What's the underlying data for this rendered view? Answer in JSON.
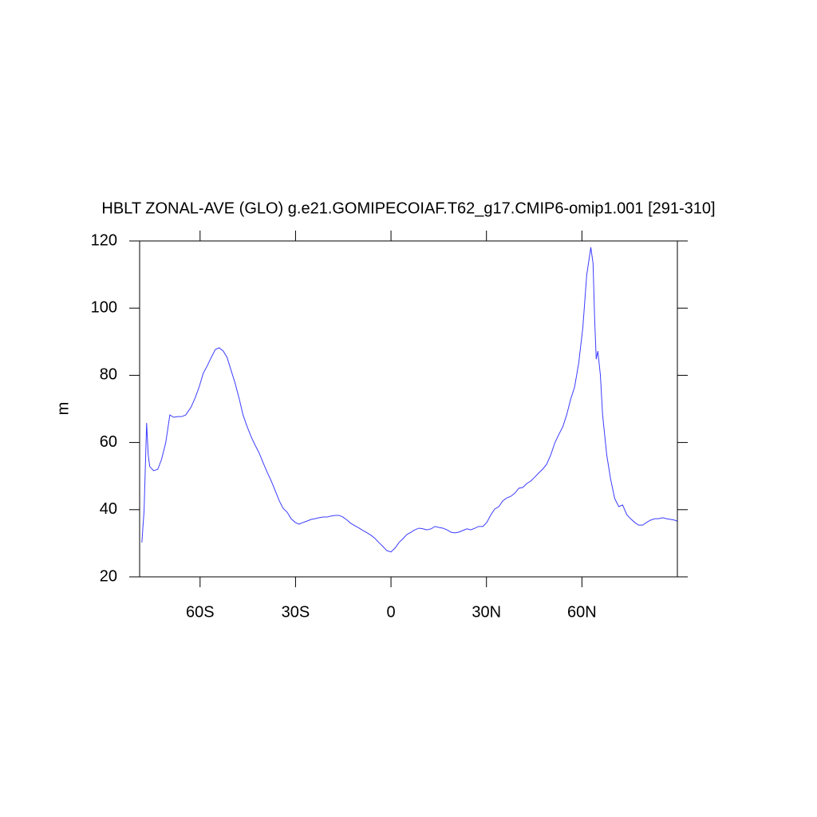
{
  "chart_data": {
    "type": "line",
    "title": "HBLT ZONAL-AVE (GLO) g.e21.GOMIPECOIAF.T62_g17.CMIP6-omip1.001 [291-310]",
    "y_label": "m",
    "x": [
      -78.3,
      -77.6,
      -76.8,
      -76.3,
      -75.8,
      -74.6,
      -73.3,
      -72.1,
      -70.8,
      -69.5,
      -68.3,
      -67,
      -65.8,
      -64.5,
      -62.8,
      -61.5,
      -60.3,
      -59,
      -57.7,
      -56.5,
      -55.2,
      -54,
      -52.7,
      -51.5,
      -50.2,
      -49,
      -47.7,
      -46.5,
      -45.2,
      -43.9,
      -42.7,
      -41.4,
      -40.2,
      -38.9,
      -37.7,
      -36.4,
      -35.1,
      -33.9,
      -32.6,
      -31.4,
      -30.1,
      -28.9,
      -27.6,
      -26.4,
      -25.1,
      -23.9,
      -22.6,
      -21.3,
      -20.1,
      -18.8,
      -17.6,
      -16.3,
      -15.1,
      -13.8,
      -12.6,
      -11.3,
      -10,
      -8.8,
      -7.5,
      -6.3,
      -5,
      -3.8,
      -2.5,
      -1.3,
      0,
      1.3,
      2.5,
      3.8,
      5,
      6.3,
      7.5,
      8.8,
      10,
      11.3,
      12.6,
      13.8,
      15.1,
      16.3,
      17.6,
      18.8,
      20.1,
      21.3,
      22.6,
      23.9,
      25.1,
      26.4,
      27.6,
      28.9,
      30.1,
      31.4,
      32.6,
      33.9,
      35.1,
      36.4,
      37.7,
      38.9,
      40.2,
      41.4,
      42.7,
      43.9,
      45.2,
      46.4,
      47.7,
      48.9,
      50.2,
      51.5,
      52.7,
      54,
      55.2,
      56.5,
      57.7,
      59,
      60.3,
      61.5,
      62.8,
      63.5,
      64,
      64.5,
      65,
      65.8,
      66.5,
      67.8,
      69,
      70.3,
      71.6,
      72.8,
      74.1,
      75.3,
      76.6,
      77.8,
      79.1,
      80.3,
      81.6,
      82.9,
      84.1,
      85.4,
      86.6,
      87.9,
      89.1,
      89.9
    ],
    "series": [
      {
        "color": "#3c3cff",
        "values": [
          30.2,
          39.7,
          65.8,
          56.3,
          52.8,
          51.6,
          52,
          55,
          59.9,
          68.2,
          67.5,
          67.7,
          67.7,
          68.2,
          70.6,
          73.4,
          76.5,
          80.6,
          82.9,
          85.3,
          87.7,
          88.2,
          87.2,
          85.3,
          81.3,
          77.7,
          73,
          68.2,
          64.7,
          61.6,
          59.2,
          56.8,
          54,
          51.1,
          48.7,
          45.7,
          42.6,
          40.4,
          39.2,
          37.3,
          36.2,
          35.7,
          36.2,
          36.6,
          37.1,
          37.3,
          37.6,
          37.8,
          37.8,
          38.1,
          38.3,
          38.3,
          37.8,
          36.9,
          35.9,
          35.2,
          34.5,
          33.8,
          33.1,
          32.4,
          31.4,
          30.2,
          29,
          27.8,
          27.4,
          28.6,
          30.2,
          31.4,
          32.6,
          33.3,
          34,
          34.5,
          34.3,
          34,
          34.3,
          35,
          34.7,
          34.5,
          34,
          33.3,
          33.1,
          33.3,
          33.8,
          34.3,
          34,
          34.5,
          35,
          35,
          36.2,
          38.5,
          40.2,
          40.9,
          42.6,
          43.5,
          44,
          44.9,
          46.4,
          46.6,
          47.8,
          48.5,
          49.7,
          50.9,
          52.1,
          53.5,
          56.3,
          59.9,
          62.3,
          64.7,
          68.2,
          73,
          76.5,
          83.7,
          94.3,
          109.8,
          118.1,
          113.3,
          96.7,
          84.8,
          87.2,
          80.1,
          68.2,
          56.3,
          49.2,
          43.3,
          40.9,
          41.4,
          38.5,
          37.3,
          36.2,
          35.4,
          35.4,
          36.2,
          36.9,
          37.3,
          37.3,
          37.6,
          37.3,
          37.1,
          36.9,
          36.6
        ]
      }
    ],
    "xlim": [
      -79,
      90
    ],
    "ylim": [
      20,
      120
    ],
    "xticks": [
      {
        "value": -60,
        "label": "60S"
      },
      {
        "value": -30,
        "label": "30S"
      },
      0,
      {
        "value": 30,
        "label": "30N"
      },
      {
        "value": 60,
        "label": "60N"
      }
    ],
    "yticks": [
      20,
      40,
      60,
      80,
      100,
      120
    ]
  }
}
